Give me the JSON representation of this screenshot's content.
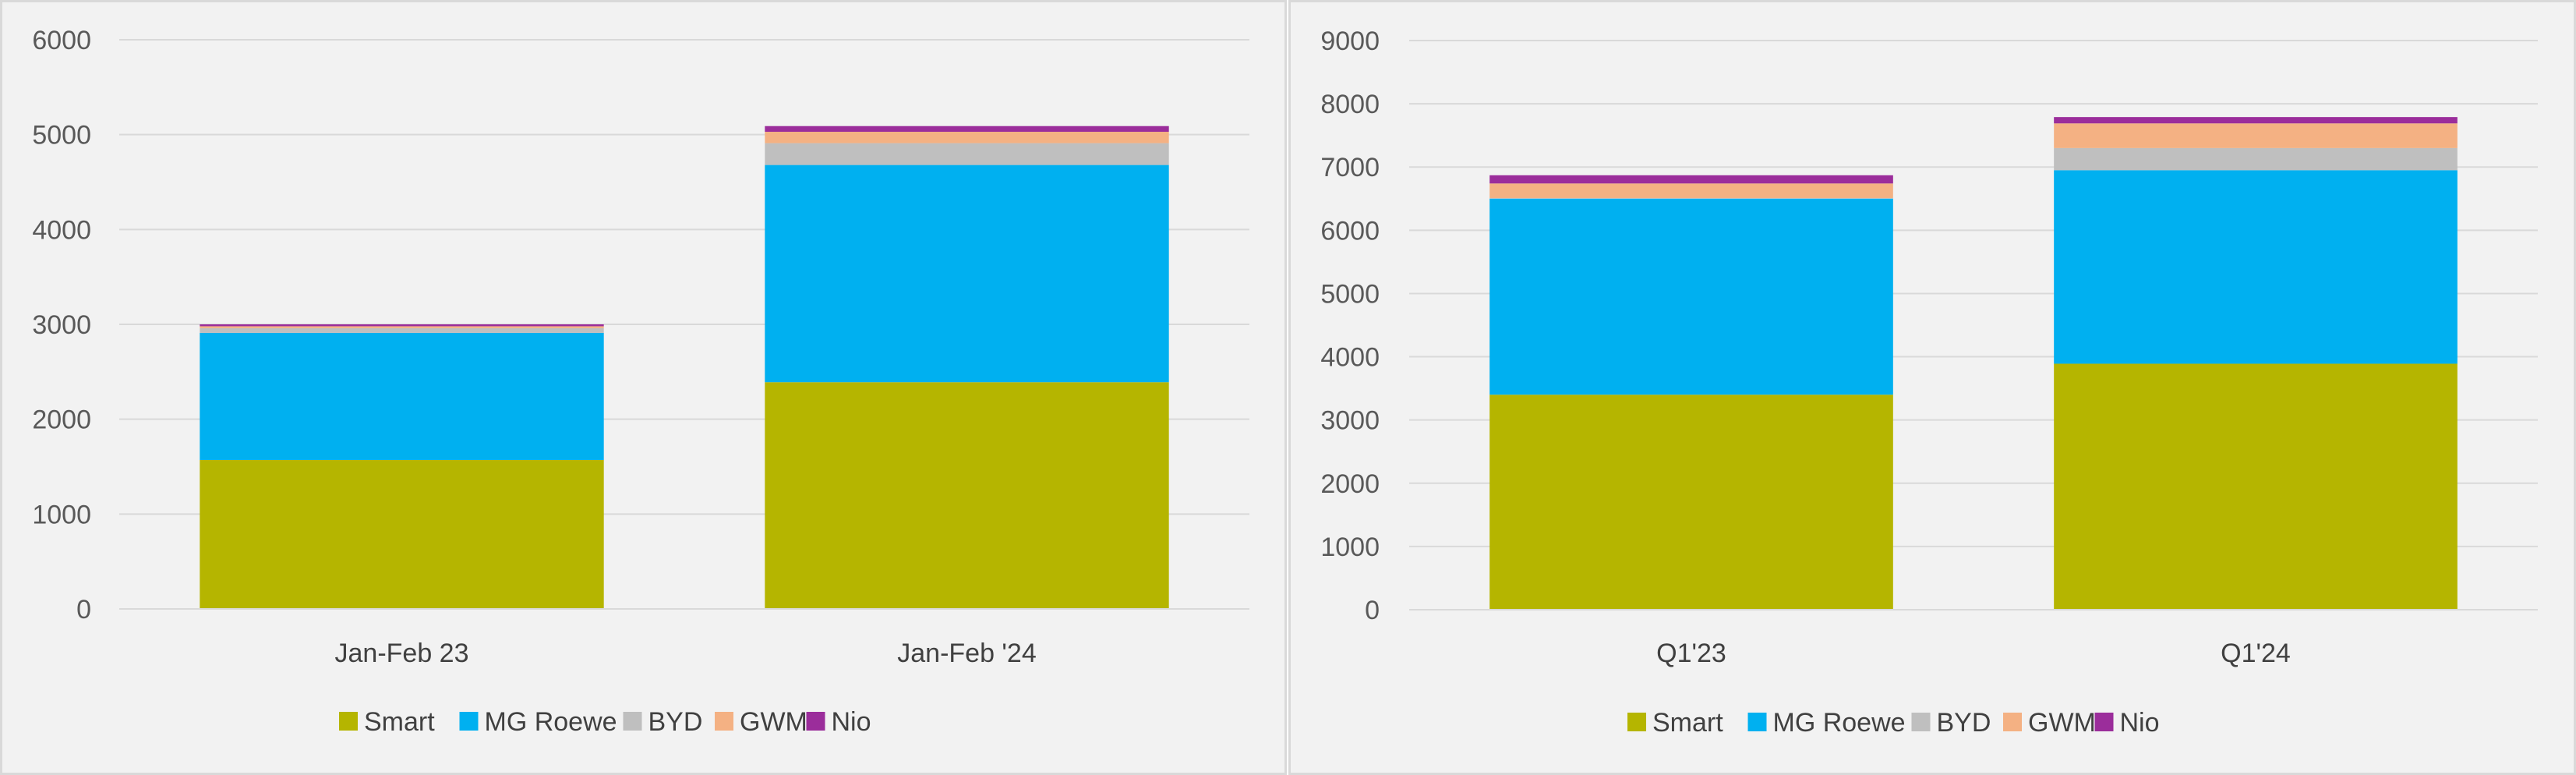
{
  "chart_data": [
    {
      "type": "bar",
      "stacked": true,
      "categories": [
        "Jan-Feb 23",
        "Jan-Feb '24"
      ],
      "series": [
        {
          "name": "Smart",
          "color": "#b5b500",
          "values": [
            1570,
            2390
          ]
        },
        {
          "name": "MG Roewe",
          "color": "#00b0f0",
          "values": [
            1340,
            2290
          ]
        },
        {
          "name": "BYD",
          "color": "#bfbfbf",
          "values": [
            50,
            230
          ]
        },
        {
          "name": "GWM",
          "color": "#f4b183",
          "values": [
            20,
            120
          ]
        },
        {
          "name": "Nio",
          "color": "#9b2d9b",
          "values": [
            20,
            60
          ]
        }
      ],
      "ylim": [
        0,
        6000
      ],
      "yticks": [
        0,
        1000,
        2000,
        3000,
        4000,
        5000,
        6000
      ],
      "grid": true,
      "legend": "bottom",
      "title": "",
      "xlabel": "",
      "ylabel": ""
    },
    {
      "type": "bar",
      "stacked": true,
      "categories": [
        "Q1'23",
        "Q1'24"
      ],
      "series": [
        {
          "name": "Smart",
          "color": "#b5b500",
          "values": [
            3400,
            3890
          ]
        },
        {
          "name": "MG Roewe",
          "color": "#00b0f0",
          "values": [
            3100,
            3060
          ]
        },
        {
          "name": "BYD",
          "color": "#bfbfbf",
          "values": [
            10,
            350
          ]
        },
        {
          "name": "GWM",
          "color": "#f4b183",
          "values": [
            230,
            390
          ]
        },
        {
          "name": "Nio",
          "color": "#9b2d9b",
          "values": [
            130,
            100
          ]
        }
      ],
      "ylim": [
        0,
        9000
      ],
      "yticks": [
        0,
        1000,
        2000,
        3000,
        4000,
        5000,
        6000,
        7000,
        8000,
        9000
      ],
      "grid": true,
      "legend": "bottom",
      "title": "",
      "xlabel": "",
      "ylabel": ""
    }
  ]
}
